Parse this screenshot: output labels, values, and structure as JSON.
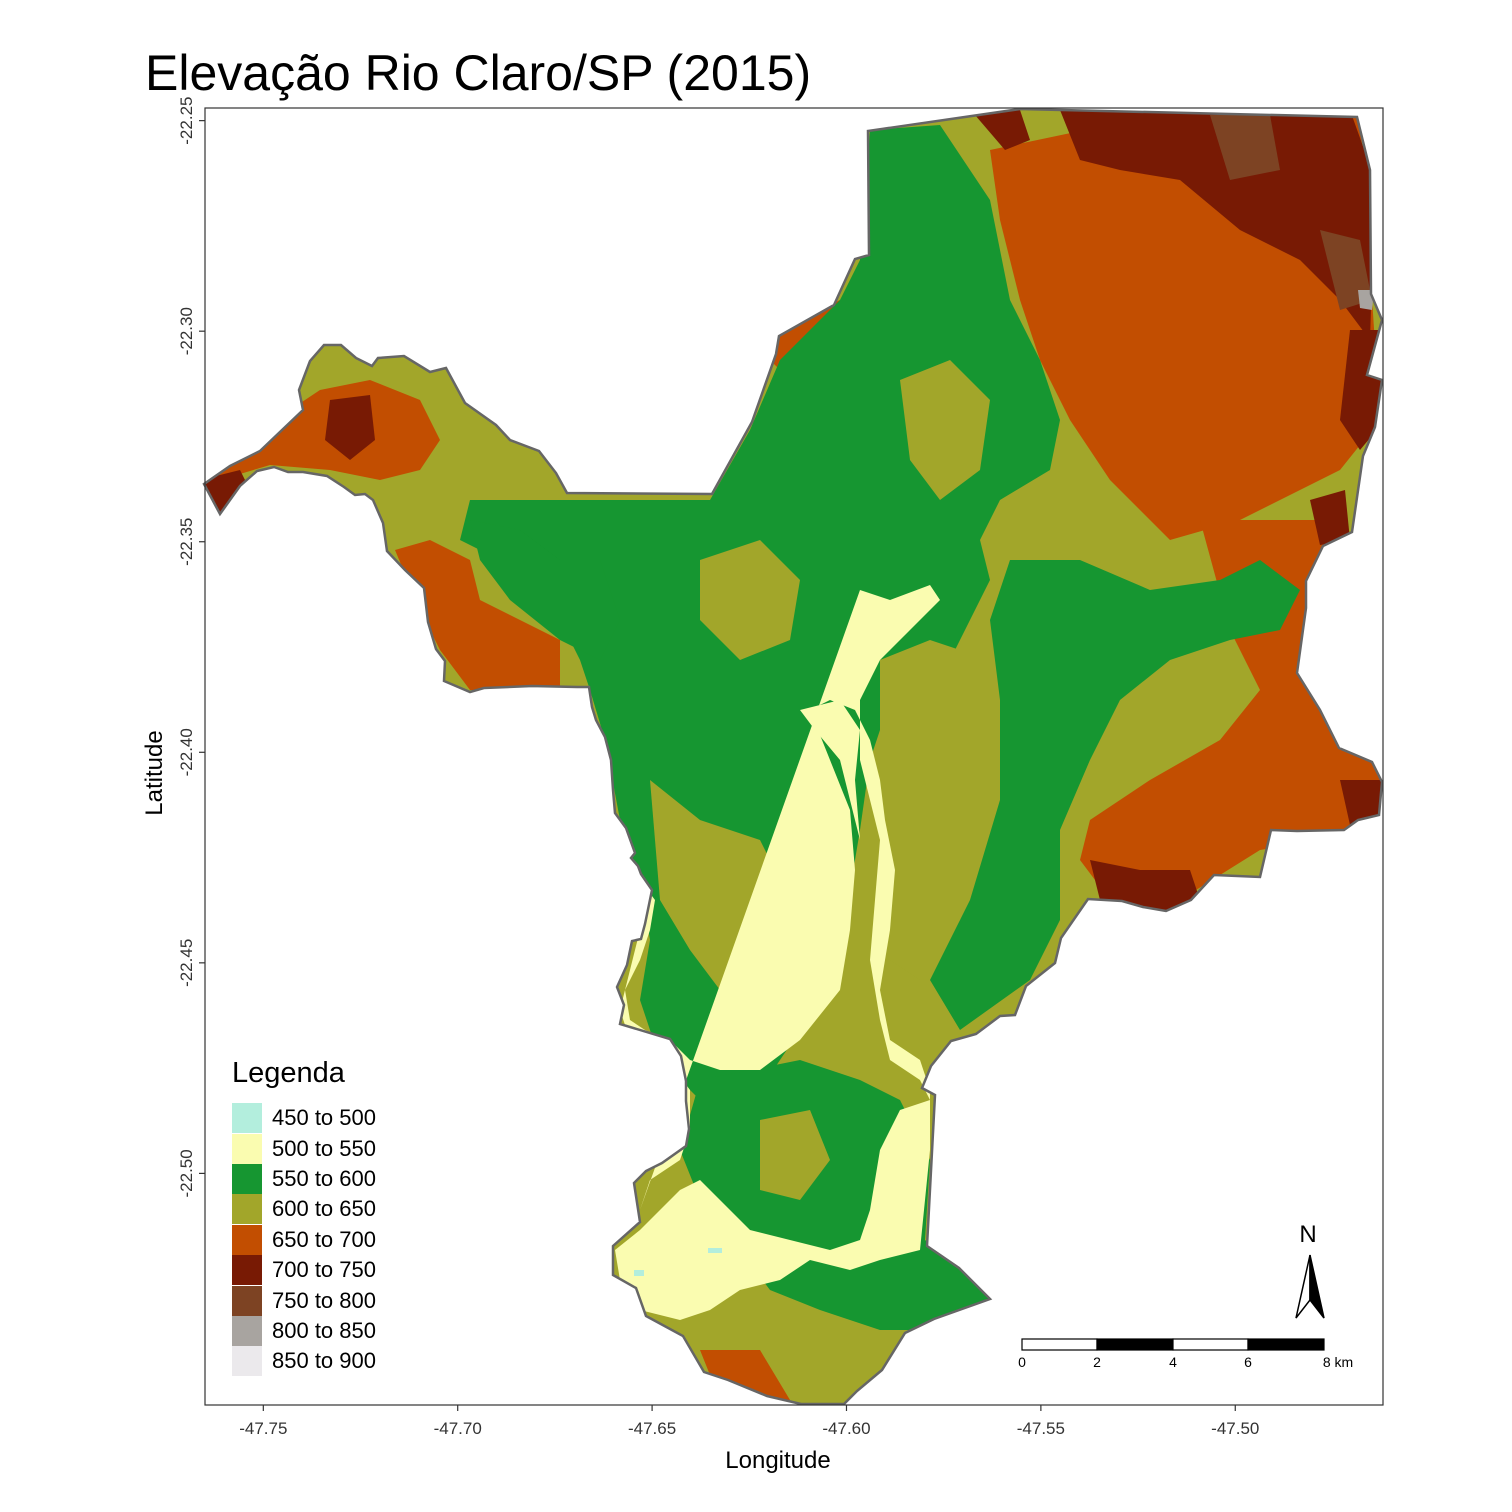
{
  "title": "Elevação Rio Claro/SP (2015)",
  "axes": {
    "xlabel": "Longitude",
    "ylabel": "Latitude",
    "x_ticks": [
      "-47.75",
      "-47.70",
      "-47.65",
      "-47.60",
      "-47.55",
      "-47.50"
    ],
    "x_tick_values": [
      -47.75,
      -47.7,
      -47.65,
      -47.6,
      -47.55,
      -47.5
    ],
    "y_ticks": [
      "-22.25",
      "-22.30",
      "-22.35",
      "-22.40",
      "-22.45",
      "-22.50"
    ],
    "y_tick_values": [
      -22.25,
      -22.3,
      -22.35,
      -22.4,
      -22.45,
      -22.5
    ],
    "xlim": [
      -47.765,
      -47.462
    ],
    "ylim": [
      -22.555,
      -22.247
    ]
  },
  "legend": {
    "title": "Legenda",
    "items": [
      {
        "label": "450 to 500",
        "color": "#b3eedd"
      },
      {
        "label": "500 to 550",
        "color": "#fafcb0"
      },
      {
        "label": "550 to 600",
        "color": "#169631"
      },
      {
        "label": "600 to 650",
        "color": "#a2a62a"
      },
      {
        "label": "650 to 700",
        "color": "#c24e01"
      },
      {
        "label": "700 to 750",
        "color": "#781a04"
      },
      {
        "label": "750 to 800",
        "color": "#7d4323"
      },
      {
        "label": "800 to 850",
        "color": "#a8a4a0"
      },
      {
        "label": "850 to 900",
        "color": "#ebe9ec"
      }
    ]
  },
  "north_arrow": {
    "label": "N"
  },
  "scale_bar": {
    "labels": [
      "0",
      "2",
      "4",
      "6",
      "8 km"
    ]
  }
}
